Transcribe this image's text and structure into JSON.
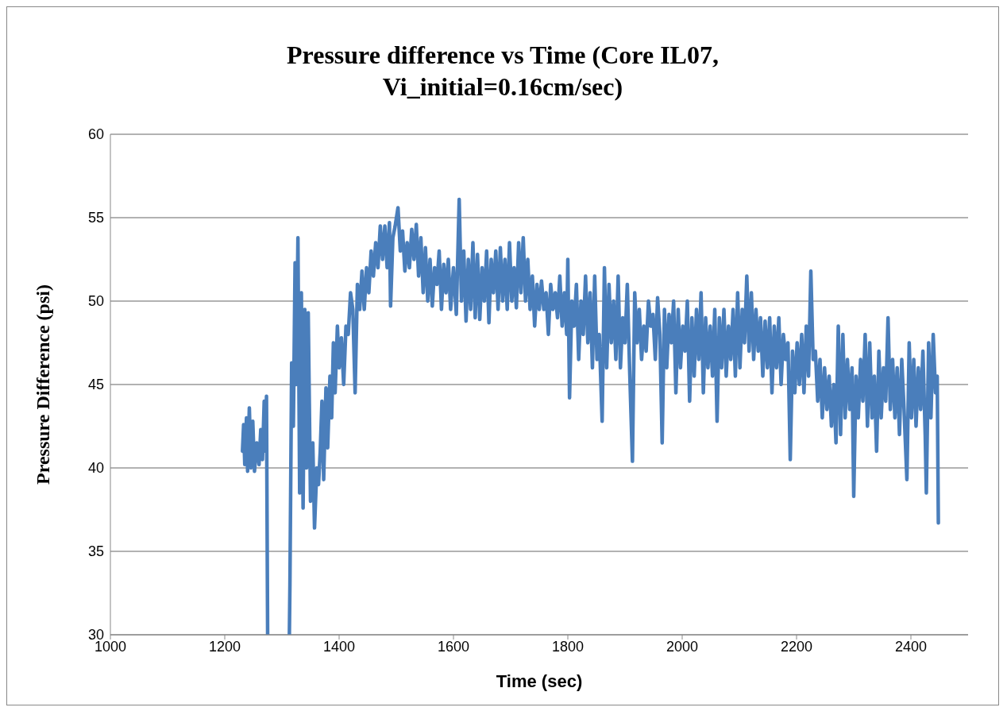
{
  "chart_data": {
    "type": "line",
    "title": "Pressure difference vs Time (Core IL07, Vi_initial=0.16cm/sec)",
    "xlabel": "Time (sec)",
    "ylabel": "Pressure Difference (psi)",
    "xlim": [
      1000,
      2500
    ],
    "xticks": [
      1000,
      1200,
      1400,
      1600,
      1800,
      2000,
      2200,
      2400
    ],
    "ylim": [
      30,
      60
    ],
    "yticks": [
      30,
      35,
      40,
      45,
      50,
      55,
      60
    ],
    "grid": "y",
    "legend": false,
    "marker": "none",
    "line_style": "solid",
    "x": [
      1231,
      1233,
      1235,
      1238,
      1240,
      1243,
      1246,
      1249,
      1252,
      1256,
      1260,
      1263,
      1266,
      1269,
      1271,
      1273,
      1275,
      1294,
      1313,
      1314,
      1317,
      1320,
      1323,
      1325,
      1328,
      1331,
      1334,
      1337,
      1340,
      1343,
      1346,
      1350,
      1354,
      1357,
      1361,
      1364,
      1367,
      1370,
      1373,
      1377,
      1380,
      1384,
      1387,
      1390,
      1393,
      1397,
      1400,
      1404,
      1408,
      1412,
      1416,
      1420,
      1424,
      1428,
      1432,
      1436,
      1440,
      1444,
      1448,
      1452,
      1456,
      1460,
      1464,
      1468,
      1472,
      1476,
      1480,
      1484,
      1488,
      1490,
      1494,
      1498,
      1503,
      1507,
      1511,
      1515,
      1519,
      1523,
      1527,
      1531,
      1535,
      1539,
      1543,
      1547,
      1551,
      1555,
      1559,
      1563,
      1567,
      1571,
      1575,
      1579,
      1583,
      1587,
      1591,
      1595,
      1600,
      1605,
      1610,
      1614,
      1618,
      1622,
      1626,
      1630,
      1634,
      1638,
      1642,
      1646,
      1650,
      1654,
      1658,
      1662,
      1666,
      1670,
      1674,
      1678,
      1682,
      1686,
      1690,
      1694,
      1698,
      1702,
      1706,
      1710,
      1714,
      1718,
      1722,
      1726,
      1730,
      1734,
      1738,
      1742,
      1746,
      1750,
      1754,
      1758,
      1762,
      1766,
      1770,
      1774,
      1778,
      1782,
      1786,
      1790,
      1794,
      1798,
      1800,
      1803,
      1807,
      1811,
      1815,
      1819,
      1823,
      1827,
      1831,
      1835,
      1839,
      1843,
      1847,
      1851,
      1855,
      1860,
      1864,
      1868,
      1872,
      1876,
      1880,
      1884,
      1888,
      1892,
      1896,
      1900,
      1904,
      1908,
      1913,
      1917,
      1921,
      1925,
      1929,
      1933,
      1937,
      1941,
      1945,
      1949,
      1953,
      1957,
      1961,
      1965,
      1969,
      1973,
      1977,
      1981,
      1985,
      1989,
      1993,
      1997,
      2001,
      2005,
      2009,
      2013,
      2017,
      2021,
      2025,
      2029,
      2033,
      2037,
      2041,
      2045,
      2049,
      2053,
      2057,
      2061,
      2065,
      2069,
      2073,
      2077,
      2081,
      2085,
      2089,
      2093,
      2097,
      2101,
      2105,
      2109,
      2113,
      2117,
      2121,
      2125,
      2129,
      2133,
      2137,
      2141,
      2145,
      2149,
      2153,
      2157,
      2161,
      2165,
      2169,
      2173,
      2177,
      2181,
      2185,
      2189,
      2193,
      2197,
      2201,
      2205,
      2209,
      2213,
      2217,
      2221,
      2225,
      2229,
      2233,
      2237,
      2241,
      2245,
      2249,
      2253,
      2257,
      2261,
      2265,
      2269,
      2273,
      2277,
      2281,
      2285,
      2289,
      2293,
      2297,
      2300,
      2304,
      2308,
      2312,
      2316,
      2320,
      2324,
      2328,
      2332,
      2336,
      2340,
      2344,
      2348,
      2352,
      2356,
      2360,
      2364,
      2368,
      2372,
      2376,
      2380,
      2384,
      2388,
      2393,
      2397,
      2401,
      2405,
      2409,
      2413,
      2417,
      2421,
      2425,
      2427,
      2431,
      2435,
      2439,
      2443,
      2446,
      2448
    ],
    "series": [
      {
        "color": "#4a7ebb",
        "values": [
          41.0,
          42.6,
          40.2,
          43.0,
          39.8,
          43.6,
          40.0,
          42.8,
          39.8,
          41.5,
          40.2,
          42.3,
          40.5,
          44.0,
          41.0,
          44.3,
          30,
          null,
          30,
          33.0,
          46.3,
          42.5,
          52.3,
          45.0,
          53.8,
          38.5,
          50.5,
          37.6,
          49.5,
          40.0,
          49.3,
          38.0,
          41.5,
          36.4,
          40.0,
          39.0,
          41.0,
          44.0,
          39.3,
          44.8,
          41.2,
          45.5,
          43.0,
          47.5,
          44.5,
          48.5,
          46.0,
          47.8,
          45.0,
          48.5,
          48.0,
          50.5,
          49.5,
          44.5,
          51.0,
          49.5,
          51.8,
          49.5,
          52.0,
          50.5,
          53.0,
          51.5,
          53.5,
          52.0,
          54.5,
          52.5,
          54.5,
          52.0,
          54.7,
          49.7,
          53.8,
          54.5,
          55.6,
          53.0,
          54.2,
          51.8,
          53.5,
          52.0,
          54.3,
          52.5,
          54.6,
          51.5,
          53.8,
          50.5,
          53.2,
          50.0,
          52.5,
          49.7,
          52.0,
          51.0,
          53.0,
          49.5,
          52.2,
          50.5,
          52.5,
          49.5,
          52.0,
          49.2,
          56.1,
          50.0,
          53.0,
          48.8,
          52.5,
          49.5,
          53.5,
          49.0,
          52.8,
          48.9,
          52.0,
          50.0,
          53.0,
          48.7,
          52.5,
          50.5,
          53.0,
          49.5,
          53.2,
          50.0,
          52.5,
          49.5,
          53.5,
          50.0,
          52.0,
          49.6,
          53.5,
          50.5,
          53.8,
          50.0,
          52.5,
          49.5,
          51.5,
          48.5,
          51.0,
          49.5,
          51.2,
          49.5,
          50.5,
          48.0,
          51.0,
          49.5,
          50.5,
          49.0,
          51.5,
          48.5,
          50.5,
          48.0,
          52.5,
          44.2,
          50.0,
          48.5,
          51.0,
          46.5,
          50.0,
          48.0,
          51.5,
          47.5,
          50.5,
          46.0,
          51.5,
          46.5,
          48.0,
          42.8,
          52.0,
          46.0,
          51.0,
          47.5,
          50.0,
          46.5,
          51.5,
          46.0,
          49.0,
          47.5,
          51.0,
          46.0,
          40.4,
          50.5,
          47.5,
          49.5,
          46.5,
          48.5,
          47.0,
          50.0,
          48.5,
          49.2,
          46.5,
          50.2,
          48.0,
          41.5,
          49.5,
          46.0,
          49.2,
          47.5,
          50.0,
          44.5,
          49.5,
          46.0,
          48.5,
          47.0,
          50.0,
          44.0,
          49.0,
          45.5,
          49.5,
          46.5,
          50.5,
          44.5,
          49.0,
          46.0,
          48.5,
          45.5,
          49.5,
          42.8,
          49.0,
          46.0,
          49.5,
          45.5,
          48.5,
          46.5,
          49.5,
          45.5,
          50.5,
          46.0,
          49.5,
          47.5,
          51.5,
          47.0,
          50.5,
          46.5,
          49.5,
          47.0,
          49.0,
          45.5,
          48.8,
          46.0,
          49.0,
          44.5,
          48.5,
          46.0,
          49.0,
          45.0,
          48.0,
          46.5,
          47.5,
          40.5,
          47.0,
          44.5,
          47.5,
          45.0,
          48.0,
          44.5,
          48.5,
          45.5,
          51.8,
          46.5,
          47.0,
          44.0,
          46.5,
          43.0,
          46.0,
          43.5,
          45.5,
          42.5,
          45.0,
          41.5,
          48.5,
          42.0,
          48.0,
          43.0,
          46.5,
          43.5,
          46.0,
          38.3,
          45.5,
          43.0,
          46.5,
          44.0,
          48.0,
          42.5,
          47.5,
          43.0,
          45.5,
          41.0,
          47.0,
          43.0,
          46.0,
          44.0,
          49.0,
          43.5,
          46.5,
          43.0,
          46.0,
          42.0,
          46.5,
          43.5,
          39.3,
          47.5,
          43.0,
          46.5,
          42.5,
          46.0,
          43.5,
          47.0,
          42.0,
          38.5,
          47.5,
          43.0,
          48.0,
          44.5,
          45.5,
          36.7
        ]
      }
    ]
  }
}
